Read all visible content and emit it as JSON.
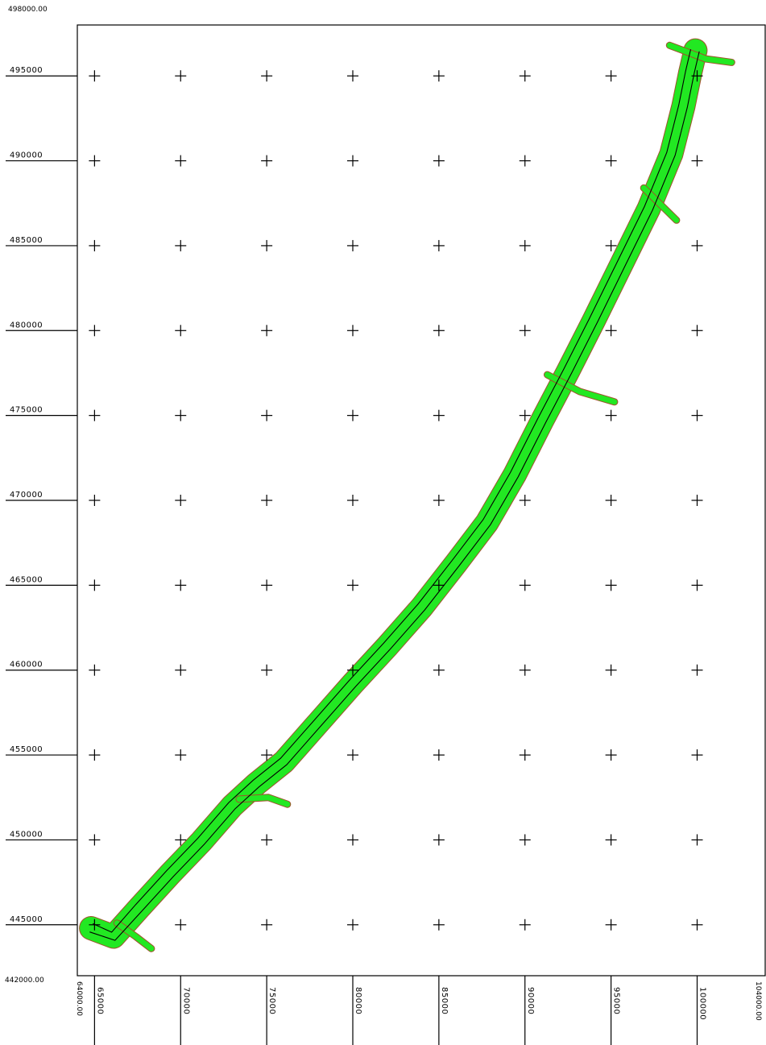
{
  "map": {
    "frame_colors": {
      "border": "#000000",
      "plot_background": "#ffffff"
    },
    "corner_labels": {
      "y_max": "498000.00",
      "y_min": "442000.00",
      "x_min": "64000.00",
      "x_max": "104000.00"
    },
    "y_axis": {
      "min": 442000,
      "max": 498000,
      "ticks": [
        {
          "value": 495000,
          "label": "495000"
        },
        {
          "value": 490000,
          "label": "490000"
        },
        {
          "value": 485000,
          "label": "485000"
        },
        {
          "value": 480000,
          "label": "480000"
        },
        {
          "value": 475000,
          "label": "475000"
        },
        {
          "value": 470000,
          "label": "470000"
        },
        {
          "value": 465000,
          "label": "465000"
        },
        {
          "value": 460000,
          "label": "460000"
        },
        {
          "value": 455000,
          "label": "455000"
        },
        {
          "value": 450000,
          "label": "450000"
        },
        {
          "value": 445000,
          "label": "445000"
        }
      ]
    },
    "x_axis": {
      "min": 64000,
      "max": 104000,
      "ticks": [
        {
          "value": 65000,
          "label": "65000"
        },
        {
          "value": 70000,
          "label": "70000"
        },
        {
          "value": 75000,
          "label": "75000"
        },
        {
          "value": 80000,
          "label": "80000"
        },
        {
          "value": 85000,
          "label": "85000"
        },
        {
          "value": 90000,
          "label": "90000"
        },
        {
          "value": 95000,
          "label": "95000"
        },
        {
          "value": 100000,
          "label": "100000"
        }
      ]
    },
    "grid_marker": "cross",
    "corridor": {
      "fill_color": "#22e822",
      "edge_color": "#a0522d",
      "line_color": "#000000",
      "centerline": [
        [
          64800,
          444800
        ],
        [
          66100,
          444300
        ],
        [
          67600,
          446000
        ],
        [
          69400,
          448000
        ],
        [
          71200,
          449900
        ],
        [
          73000,
          452000
        ],
        [
          74400,
          453300
        ],
        [
          76000,
          454600
        ],
        [
          78000,
          456900
        ],
        [
          80000,
          459200
        ],
        [
          82000,
          461400
        ],
        [
          84000,
          463700
        ],
        [
          86000,
          466300
        ],
        [
          87800,
          468700
        ],
        [
          89400,
          471500
        ],
        [
          91000,
          474700
        ],
        [
          92500,
          477600
        ],
        [
          94000,
          480600
        ],
        [
          95600,
          483900
        ],
        [
          97200,
          487200
        ],
        [
          98500,
          490400
        ],
        [
          99200,
          493200
        ],
        [
          99600,
          495200
        ],
        [
          99900,
          496500
        ]
      ],
      "branches": [
        [
          [
            91300,
            477400
          ],
          [
            93200,
            476400
          ],
          [
            95200,
            475800
          ]
        ],
        [
          [
            96900,
            488400
          ],
          [
            98100,
            487200
          ],
          [
            98800,
            486500
          ]
        ],
        [
          [
            98400,
            496800
          ],
          [
            100500,
            496000
          ],
          [
            102000,
            495800
          ]
        ],
        [
          [
            73400,
            452400
          ],
          [
            75100,
            452500
          ],
          [
            76200,
            452100
          ]
        ],
        [
          [
            66300,
            445100
          ],
          [
            67400,
            444300
          ],
          [
            68300,
            443600
          ]
        ]
      ]
    }
  }
}
